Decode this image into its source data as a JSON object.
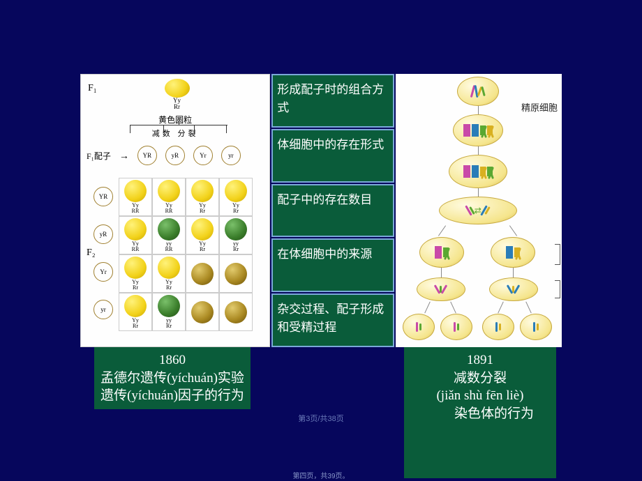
{
  "colors": {
    "slide_bg": "#06065c",
    "panel_bg": "#0a5c3a",
    "panel_border": "#7aa8d8",
    "pea_yellow_light": "#fff27a",
    "pea_yellow_dark": "#c9a500",
    "pea_green_light": "#7ac06a",
    "pea_green_dark": "#254f18",
    "chrom_pink": "#c94aa8",
    "chrom_blue": "#2a7db8",
    "chrom_green": "#5aa832",
    "chrom_yellow": "#d8b020"
  },
  "left": {
    "f1": "F₁",
    "top_geno": "Yy\nRr",
    "caption": "黄色圆粒",
    "sub_caption": "减数 分裂",
    "gamete_label": "F₁配子",
    "gametes": [
      "YR",
      "yR",
      "Yr",
      "yr"
    ],
    "f2": "F₂",
    "grid": [
      [
        {
          "g": "Yy\nRR",
          "c": "yellow"
        },
        {
          "g": "Yy\nRR",
          "c": "yellow"
        },
        {
          "g": "Yy\nRr",
          "c": "yellow"
        },
        {
          "g": "Yy\nRr",
          "c": "yellow"
        }
      ],
      [
        {
          "g": "Yy\nRR",
          "c": "yellow"
        },
        {
          "g": "yy\nRR",
          "c": "green"
        },
        {
          "g": "Yy\nRr",
          "c": "yellow"
        },
        {
          "g": "yy\nRr",
          "c": "green"
        }
      ],
      [
        {
          "g": "Yy\nRr",
          "c": "yellow"
        },
        {
          "g": "Yy\nRr",
          "c": "yellow"
        },
        {
          "g": "",
          "c": "wrinkled"
        },
        {
          "g": "",
          "c": "wrinkled"
        }
      ],
      [
        {
          "g": "Yy\nRr",
          "c": "yellow"
        },
        {
          "g": "yy\nRr",
          "c": "green"
        },
        {
          "g": "",
          "c": "wrinkled"
        },
        {
          "g": "",
          "c": "wrinkled"
        }
      ]
    ]
  },
  "mid": {
    "rows": [
      "形成配子时的组合方式",
      "体细胞中的存在形式",
      "配子中的存在数目",
      "在体细胞中的来源",
      "杂交过程、配子形成和受精过程"
    ]
  },
  "right": {
    "label": "精原细胞"
  },
  "cap_left": {
    "year": "1860",
    "line2": "孟德尔遗传(yíchuán)实验",
    "line3": "遗传(yíchuán)因子的行为"
  },
  "cap_right": {
    "year": "1891",
    "line2": "减数分裂",
    "line3": "(jiǎn shù fēn liè)",
    "line4": "染色体的行为"
  },
  "pager1": "第3页/共38页",
  "pager2": "第四页，共39页。"
}
